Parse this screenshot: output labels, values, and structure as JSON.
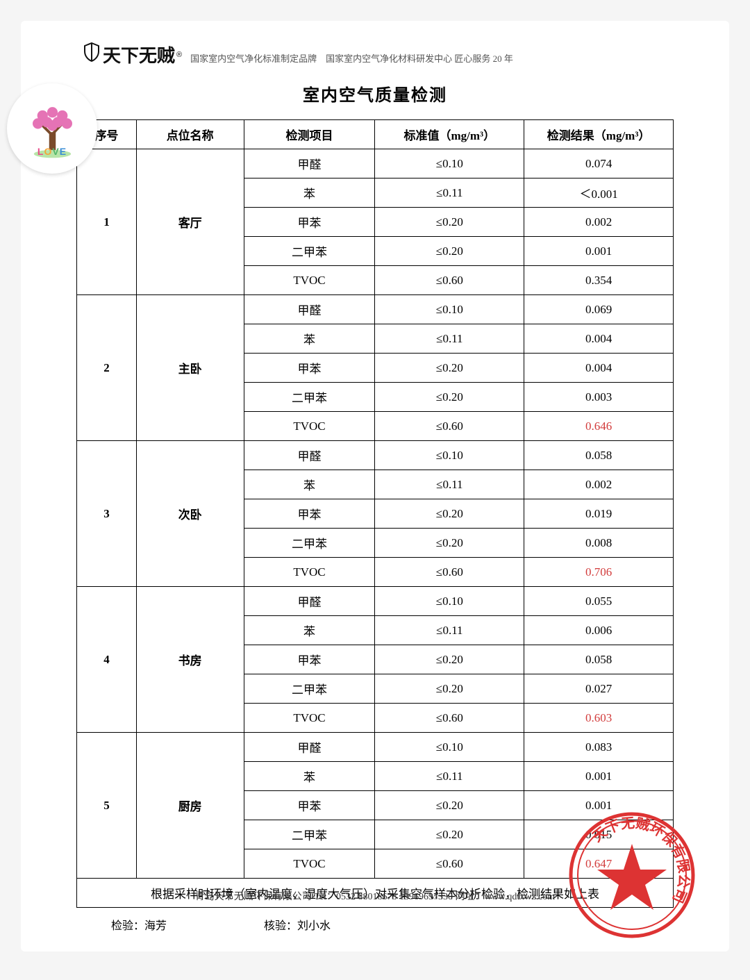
{
  "brand": {
    "name": "天下无贼",
    "registered": "®",
    "tagline": "国家室内空气净化标准制定品牌　国家室内空气净化材料研发中心 匠心服务 20 年"
  },
  "title": "室内空气质量检测",
  "columns": [
    "序号",
    "点位名称",
    "检测项目",
    "标准值（mg/m³）",
    "检测结果（mg/m³）"
  ],
  "locations": [
    {
      "serial": "1",
      "name": "客厅",
      "rows": [
        {
          "item": "甲醛",
          "std": "≤0.10",
          "result": "0.074",
          "red": false
        },
        {
          "item": "苯",
          "std": "≤0.11",
          "result": "＜0.001",
          "red": false
        },
        {
          "item": "甲苯",
          "std": "≤0.20",
          "result": "0.002",
          "red": false
        },
        {
          "item": "二甲苯",
          "std": "≤0.20",
          "result": "0.001",
          "red": false
        },
        {
          "item": "TVOC",
          "std": "≤0.60",
          "result": "0.354",
          "red": false
        }
      ]
    },
    {
      "serial": "2",
      "name": "主卧",
      "rows": [
        {
          "item": "甲醛",
          "std": "≤0.10",
          "result": "0.069",
          "red": false
        },
        {
          "item": "苯",
          "std": "≤0.11",
          "result": "0.004",
          "red": false
        },
        {
          "item": "甲苯",
          "std": "≤0.20",
          "result": "0.004",
          "red": false
        },
        {
          "item": "二甲苯",
          "std": "≤0.20",
          "result": "0.003",
          "red": false
        },
        {
          "item": "TVOC",
          "std": "≤0.60",
          "result": "0.646",
          "red": true
        }
      ]
    },
    {
      "serial": "3",
      "name": "次卧",
      "rows": [
        {
          "item": "甲醛",
          "std": "≤0.10",
          "result": "0.058",
          "red": false
        },
        {
          "item": "苯",
          "std": "≤0.11",
          "result": "0.002",
          "red": false
        },
        {
          "item": "甲苯",
          "std": "≤0.20",
          "result": "0.019",
          "red": false
        },
        {
          "item": "二甲苯",
          "std": "≤0.20",
          "result": "0.008",
          "red": false
        },
        {
          "item": "TVOC",
          "std": "≤0.60",
          "result": "0.706",
          "red": true
        }
      ]
    },
    {
      "serial": "4",
      "name": "书房",
      "rows": [
        {
          "item": "甲醛",
          "std": "≤0.10",
          "result": "0.055",
          "red": false
        },
        {
          "item": "苯",
          "std": "≤0.11",
          "result": "0.006",
          "red": false
        },
        {
          "item": "甲苯",
          "std": "≤0.20",
          "result": "0.058",
          "red": false
        },
        {
          "item": "二甲苯",
          "std": "≤0.20",
          "result": "0.027",
          "red": false
        },
        {
          "item": "TVOC",
          "std": "≤0.60",
          "result": "0.603",
          "red": true
        }
      ]
    },
    {
      "serial": "5",
      "name": "厨房",
      "rows": [
        {
          "item": "甲醛",
          "std": "≤0.10",
          "result": "0.083",
          "red": false
        },
        {
          "item": "苯",
          "std": "≤0.11",
          "result": "0.001",
          "red": false
        },
        {
          "item": "甲苯",
          "std": "≤0.20",
          "result": "0.001",
          "red": false
        },
        {
          "item": "二甲苯",
          "std": "≤0.20",
          "result": "0.015",
          "red": false
        },
        {
          "item": "TVOC",
          "std": "≤0.60",
          "result": "0.647",
          "red": true
        }
      ]
    }
  ],
  "footnote": "根据采样时环境（室内温度、湿度大气压）对采集空气样本分析检验，检测结果如上表",
  "signatures": {
    "inspect_label": "检验：",
    "inspect_name": "海芳",
    "verify_label": "核验：",
    "verify_name": "刘小水"
  },
  "footer": "青岛天下无贼环保有限公司  Tel：0532 88018678  13969697330   网址：www.qdtxwz.com",
  "seal_text": "天下无贼环保有限公司",
  "column_widths_pct": [
    10,
    18,
    22,
    25,
    25
  ],
  "colors": {
    "text": "#000000",
    "red": "#d23b3b",
    "border": "#000000",
    "bg": "#ffffff"
  }
}
